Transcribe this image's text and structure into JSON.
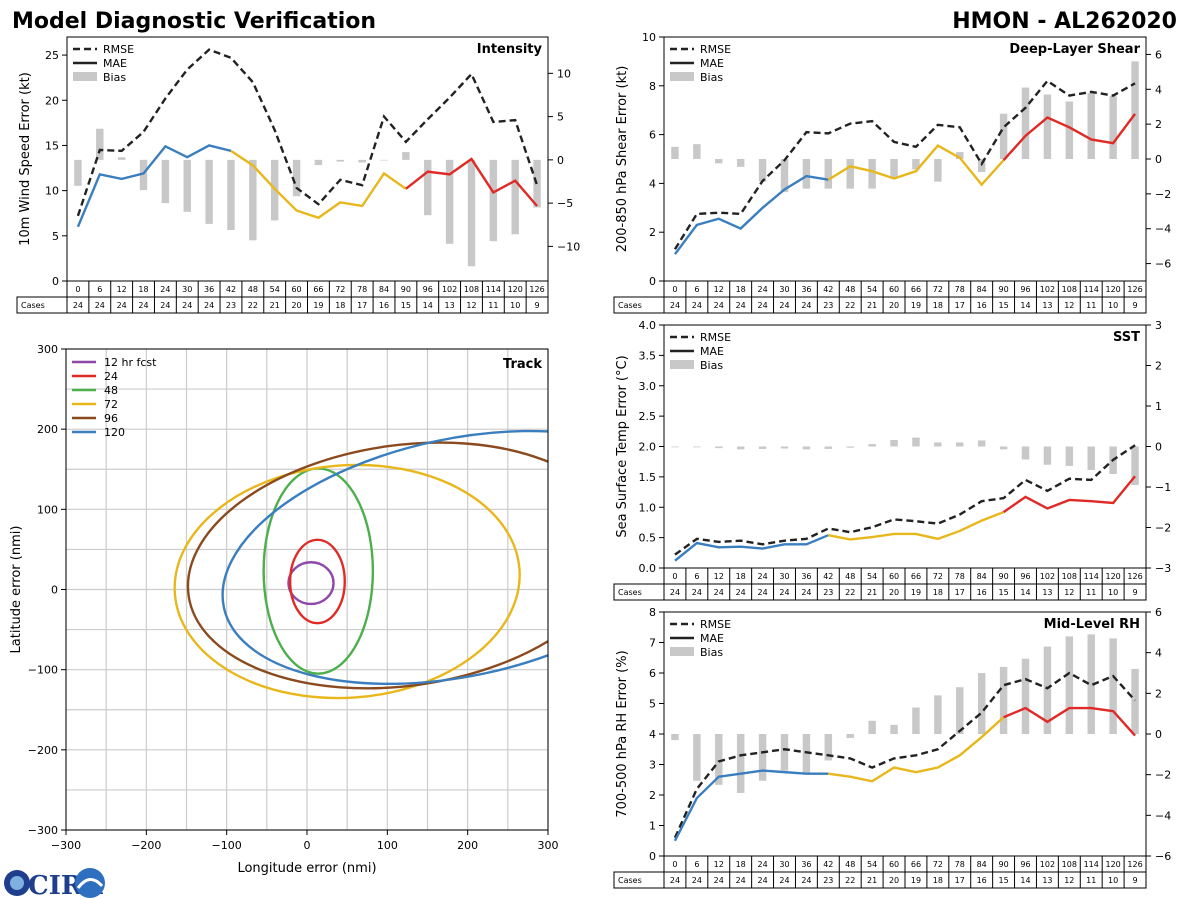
{
  "header": {
    "left_title": "Model Diagnostic Verification",
    "right_title": "HMON - AL262020"
  },
  "logo": {
    "text": "CIRA"
  },
  "shared": {
    "taus": [
      0,
      6,
      12,
      18,
      24,
      30,
      36,
      42,
      48,
      54,
      60,
      66,
      72,
      78,
      84,
      90,
      96,
      102,
      108,
      114,
      120,
      126
    ],
    "cases": [
      24,
      24,
      24,
      24,
      24,
      24,
      24,
      23,
      22,
      21,
      20,
      19,
      18,
      17,
      16,
      15,
      14,
      13,
      12,
      11,
      10,
      9
    ],
    "cases_label": "Cases",
    "legend_rmse": "RMSE",
    "legend_mae": "MAE",
    "legend_bias": "Bias",
    "colors": {
      "early": "#3a7ebf",
      "mid": "#e8b71c",
      "late": "#e02a26",
      "rmse": "#222222",
      "bias": "#c8c8c8"
    }
  },
  "chart_data": [
    {
      "id": "intensity",
      "type": "line",
      "title": "Intensity",
      "ylabel": "10m Wind Speed Error (kt)",
      "ylim": [
        0,
        27
      ],
      "yticks": [
        0,
        5,
        10,
        15,
        20,
        25
      ],
      "y2lim": [
        -14,
        14.2
      ],
      "y2ticks": [
        -10,
        -5,
        0,
        5,
        10
      ],
      "rmse": [
        7.2,
        14.5,
        14.4,
        16.5,
        20.2,
        23.4,
        25.6,
        24.7,
        22.0,
        16.7,
        10.3,
        8.5,
        11.2,
        10.6,
        18.2,
        15.4,
        17.9,
        20.3,
        22.9,
        17.6,
        17.8,
        10.6
      ],
      "mae": [
        6.0,
        11.8,
        11.3,
        11.9,
        14.9,
        13.7,
        15.0,
        14.4,
        12.8,
        10.2,
        7.8,
        7.0,
        8.7,
        8.3,
        11.9,
        10.2,
        12.1,
        11.8,
        13.5,
        9.8,
        11.1,
        8.3
      ],
      "bias": [
        -3.0,
        3.6,
        0.3,
        -3.5,
        -5.0,
        -6.0,
        -7.4,
        -8.1,
        -9.3,
        -7.0,
        -4.2,
        -0.6,
        -0.2,
        -0.3,
        0.0,
        0.9,
        -6.4,
        -9.7,
        -12.3,
        -9.4,
        -8.6,
        -5.5
      ]
    },
    {
      "id": "shear",
      "type": "line",
      "title": "Deep-Layer Shear",
      "ylabel": "200-850 hPa Shear Error (kt)",
      "ylim": [
        0,
        10
      ],
      "yticks": [
        0,
        2,
        4,
        6,
        8,
        10
      ],
      "y2lim": [
        -7,
        7
      ],
      "y2ticks": [
        -6,
        -4,
        -2,
        0,
        2,
        4,
        6
      ],
      "rmse": [
        1.3,
        2.75,
        2.8,
        2.75,
        4.1,
        4.95,
        6.1,
        6.05,
        6.45,
        6.55,
        5.7,
        5.5,
        6.4,
        6.3,
        4.8,
        6.3,
        7.1,
        8.2,
        7.6,
        7.75,
        7.6,
        8.1
      ],
      "mae": [
        1.1,
        2.3,
        2.55,
        2.15,
        3.0,
        3.75,
        4.3,
        4.15,
        4.7,
        4.5,
        4.2,
        4.5,
        5.55,
        5.05,
        3.95,
        4.95,
        5.95,
        6.7,
        6.3,
        5.8,
        5.65,
        6.85
      ],
      "bias": [
        0.7,
        0.85,
        -0.25,
        -0.45,
        -1.3,
        -1.9,
        -1.7,
        -1.7,
        -1.7,
        -1.7,
        -1.1,
        -0.6,
        -1.3,
        0.4,
        -0.75,
        2.6,
        4.1,
        3.7,
        3.3,
        3.8,
        3.6,
        5.6
      ]
    },
    {
      "id": "sst",
      "type": "line",
      "title": "SST",
      "ylabel": "Sea Surface Temp Error (°C)",
      "ylim": [
        0,
        4
      ],
      "yticks": [
        0.0,
        0.5,
        1.0,
        1.5,
        2.0,
        2.5,
        3.0,
        3.5,
        4.0
      ],
      "y2lim": [
        -3,
        3
      ],
      "y2ticks": [
        -3,
        -2,
        -1,
        0,
        1,
        2,
        3
      ],
      "rmse": [
        0.22,
        0.48,
        0.43,
        0.45,
        0.39,
        0.45,
        0.48,
        0.65,
        0.59,
        0.67,
        0.8,
        0.77,
        0.73,
        0.88,
        1.1,
        1.15,
        1.45,
        1.27,
        1.47,
        1.45,
        1.78,
        2.02
      ],
      "mae": [
        0.12,
        0.41,
        0.34,
        0.35,
        0.32,
        0.39,
        0.39,
        0.54,
        0.47,
        0.51,
        0.56,
        0.56,
        0.48,
        0.61,
        0.78,
        0.92,
        1.17,
        0.98,
        1.12,
        1.1,
        1.07,
        1.51
      ],
      "bias": [
        -0.02,
        -0.02,
        -0.04,
        -0.07,
        -0.06,
        -0.05,
        -0.07,
        -0.06,
        -0.03,
        0.06,
        0.16,
        0.22,
        0.1,
        0.1,
        0.15,
        -0.07,
        -0.32,
        -0.45,
        -0.48,
        -0.58,
        -0.68,
        -0.95
      ]
    },
    {
      "id": "rh",
      "type": "line",
      "title": "Mid-Level RH",
      "ylabel": "700-500 hPa RH Error (%)",
      "ylim": [
        0,
        8
      ],
      "yticks": [
        0,
        1,
        2,
        3,
        4,
        5,
        6,
        7,
        8
      ],
      "y2lim": [
        -6,
        6
      ],
      "y2ticks": [
        -6,
        -4,
        -2,
        0,
        2,
        4,
        6
      ],
      "rmse": [
        0.6,
        2.2,
        3.1,
        3.3,
        3.4,
        3.5,
        3.4,
        3.3,
        3.2,
        2.9,
        3.2,
        3.3,
        3.5,
        4.1,
        4.7,
        5.6,
        5.8,
        5.5,
        6.0,
        5.6,
        5.9,
        5.1
      ],
      "mae": [
        0.5,
        1.9,
        2.6,
        2.7,
        2.8,
        2.75,
        2.7,
        2.7,
        2.6,
        2.45,
        2.9,
        2.75,
        2.9,
        3.3,
        3.9,
        4.55,
        4.85,
        4.4,
        4.85,
        4.85,
        4.75,
        3.95
      ],
      "bias": [
        -0.3,
        -2.3,
        -2.5,
        -2.9,
        -2.3,
        -1.8,
        -1.9,
        -1.3,
        -0.2,
        0.65,
        0.45,
        1.3,
        1.9,
        2.3,
        3.0,
        3.3,
        3.7,
        4.3,
        4.8,
        4.9,
        4.7,
        3.2
      ]
    },
    {
      "id": "track",
      "type": "scatter",
      "title": "Track",
      "xlabel": "Longitude error (nmi)",
      "ylabel": "Latitude error (nmi)",
      "xlim": [
        -300,
        300
      ],
      "ylim": [
        -300,
        300
      ],
      "xticks": [
        -300,
        -200,
        -100,
        0,
        100,
        200,
        300
      ],
      "yticks": [
        -300,
        -200,
        -100,
        0,
        100,
        200,
        300
      ],
      "ellipses": [
        {
          "label": "12 hr fcst",
          "color": "#8f47a8",
          "cx": 5,
          "cy": 8,
          "rx": 28,
          "ry": 26,
          "angle": 0
        },
        {
          "label": "24",
          "color": "#e02a26",
          "cx": 13,
          "cy": 10,
          "rx": 34,
          "ry": 52,
          "angle": 0
        },
        {
          "label": "48",
          "color": "#4caf4c",
          "cx": 14,
          "cy": 23,
          "rx": 68,
          "ry": 128,
          "angle": 0
        },
        {
          "label": "72",
          "color": "#e8b71c",
          "cx": 50,
          "cy": 10,
          "rx": 215,
          "ry": 145,
          "angle": 4
        },
        {
          "label": "96",
          "color": "#8b4a1e",
          "cx": 120,
          "cy": 30,
          "rx": 270,
          "ry": 150,
          "angle": 8
        },
        {
          "label": "120",
          "color": "#3a7ebf",
          "cx": 190,
          "cy": 40,
          "rx": 300,
          "ry": 148,
          "angle": 12
        }
      ]
    }
  ]
}
